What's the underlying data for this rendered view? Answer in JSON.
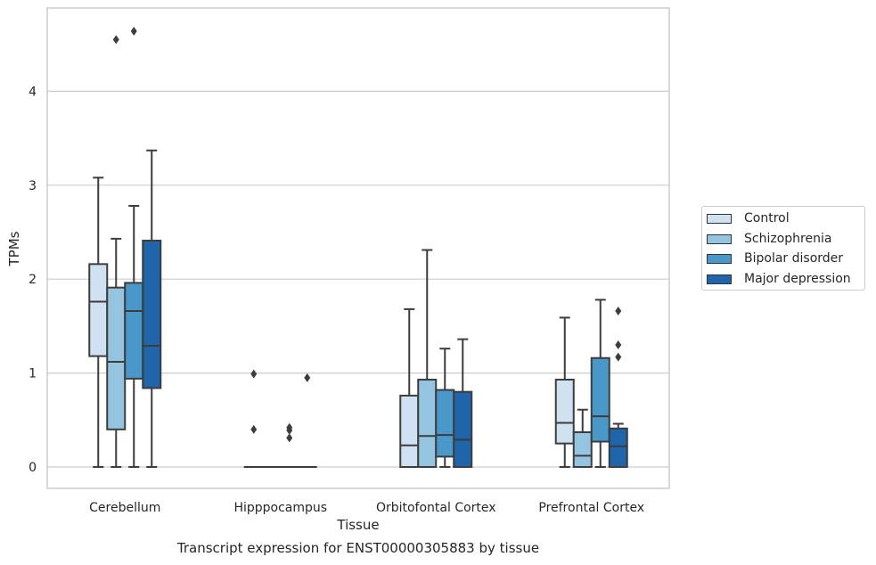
{
  "chart_data": {
    "type": "box",
    "title": "",
    "xlabel": "Tissue",
    "ylabel": "TPMs",
    "caption": "Transcript expression for ENST00000305883 by tissue",
    "ylim": [
      -0.22,
      4.9
    ],
    "yticks": [
      0,
      1,
      2,
      3,
      4
    ],
    "grid": true,
    "legend_position": "right",
    "categories": [
      "Cerebellum",
      "Hipppocampus",
      "Orbitofontal Cortex",
      "Prefrontal Cortex"
    ],
    "series": [
      {
        "name": "Control",
        "color": "#d0e1f2",
        "boxes": [
          {
            "min": 0,
            "q1": 1.18,
            "median": 1.76,
            "q3": 2.16,
            "max": 3.08,
            "outliers": []
          },
          {
            "min": 0,
            "q1": 0,
            "median": 0,
            "q3": 0,
            "max": 0,
            "outliers": [
              0.99,
              0.4
            ]
          },
          {
            "min": 0,
            "q1": 0,
            "median": 0.23,
            "q3": 0.76,
            "max": 1.68,
            "outliers": []
          },
          {
            "min": 0,
            "q1": 0.25,
            "median": 0.47,
            "q3": 0.93,
            "max": 1.59,
            "outliers": []
          }
        ]
      },
      {
        "name": "Schizophrenia",
        "color": "#94c4df",
        "boxes": [
          {
            "min": 0,
            "q1": 0.4,
            "median": 1.12,
            "q3": 1.91,
            "max": 2.43,
            "outliers": [
              4.55
            ]
          },
          {
            "min": 0,
            "q1": 0,
            "median": 0,
            "q3": 0,
            "max": 0,
            "outliers": []
          },
          {
            "min": 0,
            "q1": 0,
            "median": 0.33,
            "q3": 0.93,
            "max": 2.31,
            "outliers": []
          },
          {
            "min": 0,
            "q1": 0,
            "median": 0.12,
            "q3": 0.37,
            "max": 0.61,
            "outliers": []
          }
        ]
      },
      {
        "name": "Bipolar disorder",
        "color": "#4a98c9",
        "boxes": [
          {
            "min": 0,
            "q1": 0.94,
            "median": 1.66,
            "q3": 1.96,
            "max": 2.78,
            "outliers": [
              4.64
            ]
          },
          {
            "min": 0,
            "q1": 0,
            "median": 0,
            "q3": 0,
            "max": 0,
            "outliers": [
              0.42,
              0.39,
              0.31
            ]
          },
          {
            "min": 0,
            "q1": 0.11,
            "median": 0.34,
            "q3": 0.82,
            "max": 1.26,
            "outliers": []
          },
          {
            "min": 0,
            "q1": 0.27,
            "median": 0.54,
            "q3": 1.16,
            "max": 1.78,
            "outliers": []
          }
        ]
      },
      {
        "name": "Major depression",
        "color": "#2064aa",
        "boxes": [
          {
            "min": 0,
            "q1": 0.84,
            "median": 1.29,
            "q3": 2.41,
            "max": 3.37,
            "outliers": []
          },
          {
            "min": 0,
            "q1": 0,
            "median": 0,
            "q3": 0,
            "max": 0,
            "outliers": [
              0.95
            ]
          },
          {
            "min": 0,
            "q1": 0,
            "median": 0.29,
            "q3": 0.8,
            "max": 1.36,
            "outliers": []
          },
          {
            "min": 0,
            "q1": 0,
            "median": 0.22,
            "q3": 0.41,
            "max": 0.46,
            "outliers": [
              1.66,
              1.3,
              1.17
            ]
          }
        ]
      }
    ]
  }
}
